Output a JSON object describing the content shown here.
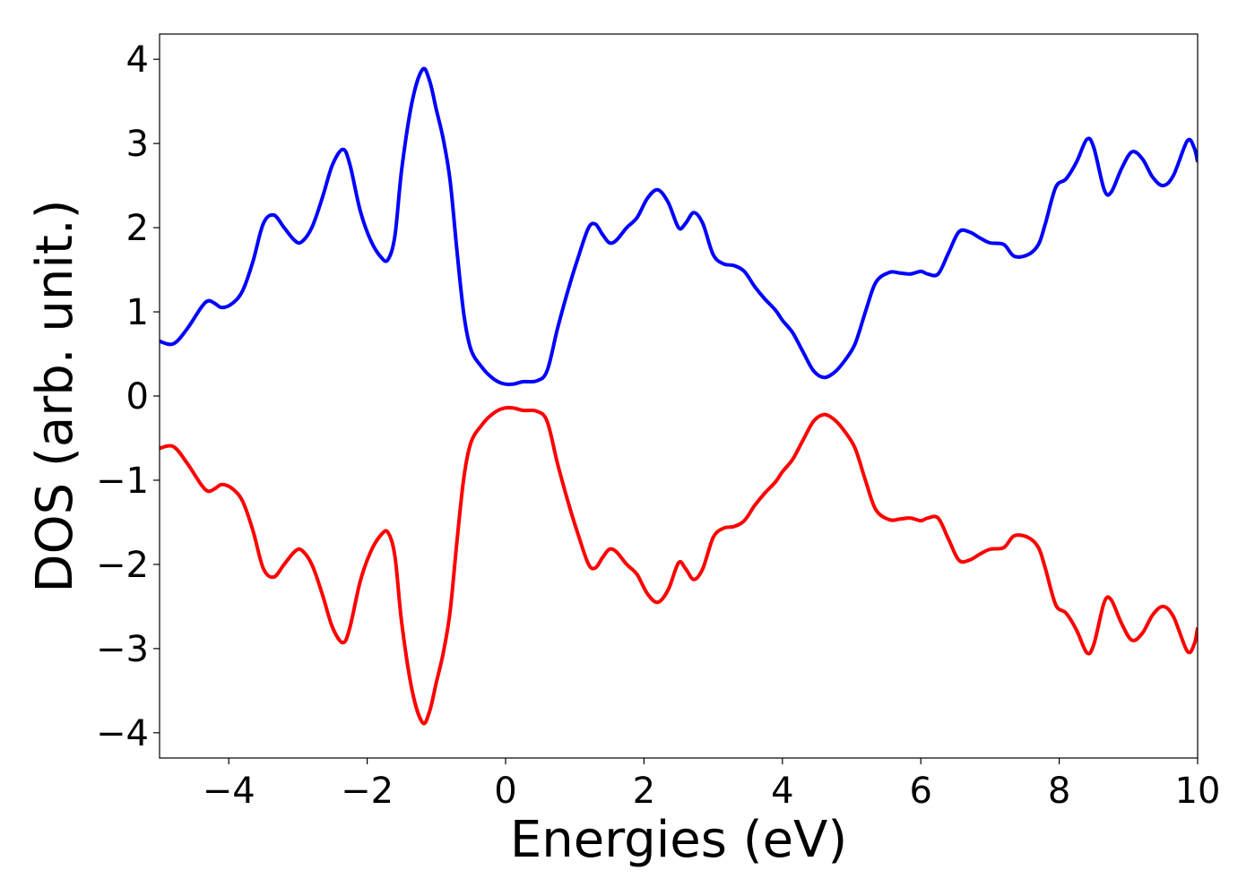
{
  "chart_data": {
    "type": "line",
    "xlabel": "Energies (eV)",
    "ylabel": "DOS (arb. unit.)",
    "xlim": [
      -5,
      10
    ],
    "ylim": [
      -4.3,
      4.3
    ],
    "xticks": [
      -4,
      -2,
      0,
      2,
      4,
      6,
      8,
      10
    ],
    "xtick_labels": [
      "−4",
      "−2",
      "0",
      "2",
      "4",
      "6",
      "8",
      "10"
    ],
    "yticks": [
      -4,
      -3,
      -2,
      -1,
      0,
      1,
      2,
      3,
      4
    ],
    "ytick_labels": [
      "−4",
      "−3",
      "−2",
      "−1",
      "0",
      "1",
      "2",
      "3",
      "4"
    ],
    "grid": false,
    "series": [
      {
        "color": "#0000ff",
        "points": [
          [
            -5.0,
            0.65
          ],
          [
            -4.8,
            0.62
          ],
          [
            -4.6,
            0.8
          ],
          [
            -4.4,
            1.05
          ],
          [
            -4.3,
            1.13
          ],
          [
            -4.2,
            1.1
          ],
          [
            -4.1,
            1.05
          ],
          [
            -3.95,
            1.1
          ],
          [
            -3.8,
            1.25
          ],
          [
            -3.65,
            1.6
          ],
          [
            -3.5,
            2.05
          ],
          [
            -3.35,
            2.15
          ],
          [
            -3.2,
            2.0
          ],
          [
            -3.05,
            1.85
          ],
          [
            -2.95,
            1.83
          ],
          [
            -2.8,
            2.0
          ],
          [
            -2.65,
            2.35
          ],
          [
            -2.5,
            2.75
          ],
          [
            -2.35,
            2.93
          ],
          [
            -2.25,
            2.75
          ],
          [
            -2.1,
            2.2
          ],
          [
            -1.95,
            1.85
          ],
          [
            -1.8,
            1.65
          ],
          [
            -1.7,
            1.62
          ],
          [
            -1.6,
            1.9
          ],
          [
            -1.5,
            2.7
          ],
          [
            -1.35,
            3.5
          ],
          [
            -1.2,
            3.88
          ],
          [
            -1.1,
            3.75
          ],
          [
            -1.0,
            3.4
          ],
          [
            -0.9,
            3.05
          ],
          [
            -0.8,
            2.55
          ],
          [
            -0.7,
            1.7
          ],
          [
            -0.6,
            0.95
          ],
          [
            -0.5,
            0.55
          ],
          [
            -0.35,
            0.35
          ],
          [
            -0.2,
            0.22
          ],
          [
            -0.05,
            0.15
          ],
          [
            0.1,
            0.14
          ],
          [
            0.25,
            0.17
          ],
          [
            0.45,
            0.18
          ],
          [
            0.6,
            0.3
          ],
          [
            0.75,
            0.8
          ],
          [
            0.9,
            1.25
          ],
          [
            1.05,
            1.65
          ],
          [
            1.2,
            2.0
          ],
          [
            1.3,
            2.04
          ],
          [
            1.4,
            1.92
          ],
          [
            1.5,
            1.82
          ],
          [
            1.6,
            1.85
          ],
          [
            1.75,
            2.0
          ],
          [
            1.9,
            2.12
          ],
          [
            2.05,
            2.35
          ],
          [
            2.2,
            2.45
          ],
          [
            2.35,
            2.3
          ],
          [
            2.5,
            2.0
          ],
          [
            2.6,
            2.05
          ],
          [
            2.72,
            2.18
          ],
          [
            2.85,
            2.05
          ],
          [
            3.0,
            1.68
          ],
          [
            3.15,
            1.57
          ],
          [
            3.3,
            1.55
          ],
          [
            3.45,
            1.48
          ],
          [
            3.6,
            1.3
          ],
          [
            3.75,
            1.15
          ],
          [
            3.9,
            1.02
          ],
          [
            4.0,
            0.9
          ],
          [
            4.15,
            0.75
          ],
          [
            4.3,
            0.52
          ],
          [
            4.45,
            0.3
          ],
          [
            4.6,
            0.22
          ],
          [
            4.75,
            0.28
          ],
          [
            4.9,
            0.42
          ],
          [
            5.05,
            0.62
          ],
          [
            5.2,
            1.0
          ],
          [
            5.35,
            1.35
          ],
          [
            5.55,
            1.47
          ],
          [
            5.7,
            1.46
          ],
          [
            5.85,
            1.45
          ],
          [
            6.0,
            1.48
          ],
          [
            6.1,
            1.45
          ],
          [
            6.25,
            1.45
          ],
          [
            6.4,
            1.7
          ],
          [
            6.55,
            1.95
          ],
          [
            6.7,
            1.95
          ],
          [
            6.85,
            1.88
          ],
          [
            7.0,
            1.82
          ],
          [
            7.2,
            1.8
          ],
          [
            7.35,
            1.66
          ],
          [
            7.55,
            1.68
          ],
          [
            7.7,
            1.8
          ],
          [
            7.8,
            2.05
          ],
          [
            7.95,
            2.48
          ],
          [
            8.1,
            2.58
          ],
          [
            8.25,
            2.78
          ],
          [
            8.4,
            3.05
          ],
          [
            8.5,
            2.95
          ],
          [
            8.65,
            2.45
          ],
          [
            8.75,
            2.42
          ],
          [
            8.9,
            2.7
          ],
          [
            9.05,
            2.9
          ],
          [
            9.2,
            2.82
          ],
          [
            9.35,
            2.6
          ],
          [
            9.5,
            2.5
          ],
          [
            9.65,
            2.62
          ],
          [
            9.85,
            3.03
          ],
          [
            9.95,
            2.95
          ],
          [
            10.0,
            2.78
          ]
        ]
      },
      {
        "color": "#ff0000",
        "points": [
          [
            -5.0,
            -0.62
          ],
          [
            -4.8,
            -0.6
          ],
          [
            -4.6,
            -0.8
          ],
          [
            -4.4,
            -1.05
          ],
          [
            -4.3,
            -1.13
          ],
          [
            -4.2,
            -1.1
          ],
          [
            -4.1,
            -1.05
          ],
          [
            -3.95,
            -1.1
          ],
          [
            -3.8,
            -1.25
          ],
          [
            -3.65,
            -1.6
          ],
          [
            -3.5,
            -2.05
          ],
          [
            -3.35,
            -2.15
          ],
          [
            -3.2,
            -2.0
          ],
          [
            -3.05,
            -1.85
          ],
          [
            -2.95,
            -1.83
          ],
          [
            -2.8,
            -2.0
          ],
          [
            -2.65,
            -2.35
          ],
          [
            -2.5,
            -2.75
          ],
          [
            -2.35,
            -2.93
          ],
          [
            -2.25,
            -2.75
          ],
          [
            -2.1,
            -2.2
          ],
          [
            -1.95,
            -1.85
          ],
          [
            -1.8,
            -1.65
          ],
          [
            -1.7,
            -1.62
          ],
          [
            -1.6,
            -1.9
          ],
          [
            -1.5,
            -2.7
          ],
          [
            -1.35,
            -3.5
          ],
          [
            -1.2,
            -3.88
          ],
          [
            -1.1,
            -3.75
          ],
          [
            -1.0,
            -3.4
          ],
          [
            -0.9,
            -3.05
          ],
          [
            -0.8,
            -2.55
          ],
          [
            -0.7,
            -1.7
          ],
          [
            -0.6,
            -0.95
          ],
          [
            -0.5,
            -0.55
          ],
          [
            -0.35,
            -0.35
          ],
          [
            -0.2,
            -0.22
          ],
          [
            -0.05,
            -0.15
          ],
          [
            0.1,
            -0.14
          ],
          [
            0.25,
            -0.17
          ],
          [
            0.45,
            -0.18
          ],
          [
            0.6,
            -0.3
          ],
          [
            0.75,
            -0.8
          ],
          [
            0.9,
            -1.25
          ],
          [
            1.05,
            -1.65
          ],
          [
            1.2,
            -2.0
          ],
          [
            1.3,
            -2.04
          ],
          [
            1.4,
            -1.92
          ],
          [
            1.5,
            -1.82
          ],
          [
            1.6,
            -1.85
          ],
          [
            1.75,
            -2.0
          ],
          [
            1.9,
            -2.12
          ],
          [
            2.05,
            -2.35
          ],
          [
            2.2,
            -2.45
          ],
          [
            2.35,
            -2.3
          ],
          [
            2.5,
            -1.98
          ],
          [
            2.6,
            -2.05
          ],
          [
            2.72,
            -2.18
          ],
          [
            2.85,
            -2.05
          ],
          [
            3.0,
            -1.68
          ],
          [
            3.15,
            -1.57
          ],
          [
            3.3,
            -1.55
          ],
          [
            3.45,
            -1.48
          ],
          [
            3.6,
            -1.3
          ],
          [
            3.75,
            -1.15
          ],
          [
            3.9,
            -1.02
          ],
          [
            4.0,
            -0.9
          ],
          [
            4.15,
            -0.75
          ],
          [
            4.3,
            -0.52
          ],
          [
            4.45,
            -0.3
          ],
          [
            4.6,
            -0.22
          ],
          [
            4.75,
            -0.28
          ],
          [
            4.9,
            -0.42
          ],
          [
            5.05,
            -0.62
          ],
          [
            5.2,
            -1.0
          ],
          [
            5.35,
            -1.35
          ],
          [
            5.55,
            -1.47
          ],
          [
            5.7,
            -1.46
          ],
          [
            5.85,
            -1.45
          ],
          [
            6.0,
            -1.48
          ],
          [
            6.1,
            -1.45
          ],
          [
            6.25,
            -1.45
          ],
          [
            6.4,
            -1.7
          ],
          [
            6.55,
            -1.95
          ],
          [
            6.7,
            -1.95
          ],
          [
            6.85,
            -1.88
          ],
          [
            7.0,
            -1.82
          ],
          [
            7.2,
            -1.8
          ],
          [
            7.35,
            -1.66
          ],
          [
            7.55,
            -1.68
          ],
          [
            7.7,
            -1.8
          ],
          [
            7.8,
            -2.05
          ],
          [
            7.95,
            -2.48
          ],
          [
            8.1,
            -2.58
          ],
          [
            8.25,
            -2.78
          ],
          [
            8.4,
            -3.05
          ],
          [
            8.5,
            -2.95
          ],
          [
            8.65,
            -2.45
          ],
          [
            8.75,
            -2.42
          ],
          [
            8.9,
            -2.7
          ],
          [
            9.05,
            -2.9
          ],
          [
            9.2,
            -2.82
          ],
          [
            9.35,
            -2.6
          ],
          [
            9.5,
            -2.5
          ],
          [
            9.65,
            -2.62
          ],
          [
            9.85,
            -3.03
          ],
          [
            9.95,
            -2.95
          ],
          [
            10.0,
            -2.75
          ]
        ]
      }
    ]
  }
}
